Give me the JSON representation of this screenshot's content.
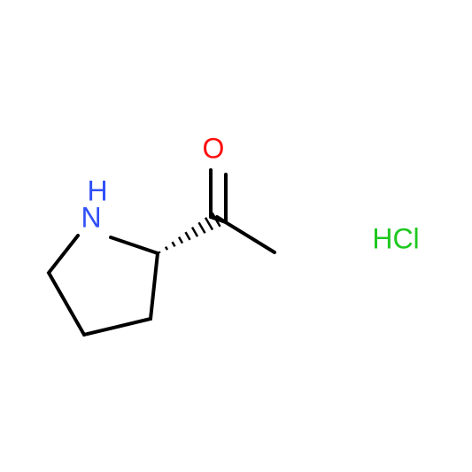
{
  "atoms": [
    {
      "label": "O"
    },
    {
      "label": "H"
    },
    {
      "label": "N"
    }
  ],
  "salt": {
    "label": "HCl"
  }
}
